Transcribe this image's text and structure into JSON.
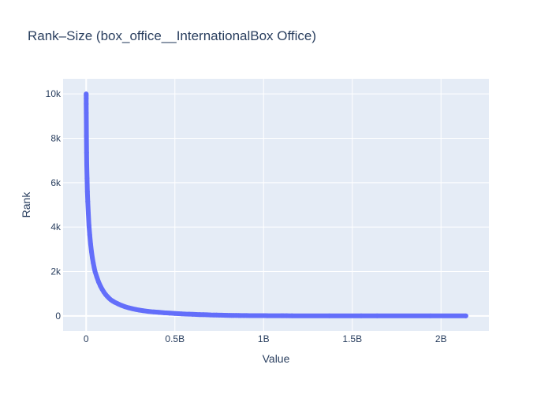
{
  "chart_data": {
    "type": "scatter",
    "title": "Rank–Size (box_office__InternationalBox Office)",
    "xlabel": "Value",
    "ylabel": "Rank",
    "xlim": [
      -130000000,
      2270000000
    ],
    "ylim": [
      -680,
      10680
    ],
    "x_ticks": [
      {
        "value": 0,
        "label": "0"
      },
      {
        "value": 500000000,
        "label": "0.5B"
      },
      {
        "value": 1000000000,
        "label": "1B"
      },
      {
        "value": 1500000000,
        "label": "1.5B"
      },
      {
        "value": 2000000000,
        "label": "2B"
      }
    ],
    "y_ticks": [
      {
        "value": 0,
        "label": "0"
      },
      {
        "value": 2000,
        "label": "2k"
      },
      {
        "value": 4000,
        "label": "4k"
      },
      {
        "value": 6000,
        "label": "6k"
      },
      {
        "value": 8000,
        "label": "8k"
      },
      {
        "value": 10000,
        "label": "10k"
      }
    ],
    "grid": true,
    "marker_color": "#636efa",
    "plot_bg": "#e5ecf6",
    "series": [
      {
        "x": [
          2140000000,
          1940000000,
          1640000000,
          1550000000,
          1370000000,
          1160000000,
          1130000000,
          1110000000,
          1100000000,
          1020000000,
          1010000000,
          975000000,
          945000000,
          920000000,
          905000000,
          890000000,
          870000000,
          860000000,
          845000000,
          830000000,
          820000000,
          810000000,
          795000000,
          785000000,
          775000000,
          765000000,
          750000000,
          735000000,
          720000000,
          700000000,
          680000000,
          660000000,
          640000000,
          620000000,
          600000000,
          580000000,
          560000000,
          540000000,
          520000000,
          500000000,
          470000000,
          440000000,
          410000000,
          380000000,
          350000000,
          320000000,
          300000000,
          280000000,
          260000000,
          240000000,
          220000000,
          200000000,
          180000000,
          160000000,
          150000000,
          140000000,
          130000000,
          120000000,
          110000000,
          100000000,
          90000000,
          80000000,
          70000000,
          60000000,
          50000000,
          45000000,
          40000000,
          35000000,
          30000000,
          25000000,
          20000000,
          16000000,
          12000000,
          9000000,
          7000000,
          5000000,
          3500000,
          2500000,
          1500000,
          1000000,
          700000,
          400000,
          200000,
          100000,
          30000
        ],
        "y": [
          1,
          2,
          3,
          4,
          5,
          6,
          7,
          8,
          9,
          10,
          11,
          12,
          13,
          14,
          15,
          16,
          17,
          18,
          19,
          20,
          22,
          24,
          26,
          28,
          30,
          32,
          35,
          38,
          41,
          45,
          50,
          55,
          60,
          66,
          72,
          78,
          85,
          92,
          100,
          110,
          125,
          140,
          160,
          180,
          205,
          235,
          260,
          290,
          325,
          365,
          410,
          470,
          540,
          620,
          670,
          720,
          790,
          870,
          960,
          1070,
          1200,
          1350,
          1530,
          1750,
          2000,
          2180,
          2380,
          2620,
          2900,
          3230,
          3650,
          4080,
          4620,
          5150,
          5600,
          6200,
          6800,
          7350,
          8100,
          8700,
          9150,
          9550,
          9800,
          9920,
          10000
        ]
      }
    ]
  }
}
